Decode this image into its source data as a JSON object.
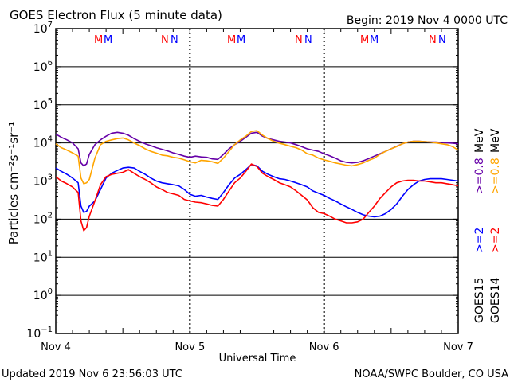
{
  "header": {
    "title": "GOES Electron Flux (5 minute data)",
    "begin": "Begin: 2019 Nov 4 0000 UTC"
  },
  "footer": {
    "updated": "Updated 2019 Nov  6 23:56:03 UTC",
    "source": "NOAA/SWPC Boulder, CO USA"
  },
  "axes": {
    "ylabel": "Particles cm⁻²s⁻¹sr⁻¹",
    "xlabel": "Universal Time"
  },
  "markers": {
    "M": "M",
    "N": "N"
  },
  "right_legend": {
    "goes15": "GOES15",
    "goes14": "GOES14",
    "ge2": ">=2",
    "ge08": ">=0.8",
    "mev": "MeV"
  },
  "colors": {
    "goes15_ge08": "#6600a8",
    "goes14_ge08": "#ffa500",
    "goes15_ge2": "#0000ff",
    "goes14_ge2": "#ff0000",
    "M_goes14": "#ff0000",
    "M_goes15": "#0000ff"
  },
  "chart_data": {
    "type": "line",
    "title": "GOES Electron Flux (5 minute data)",
    "xlabel": "Universal Time",
    "ylabel": "Particles cm⁻²s⁻¹sr⁻¹",
    "x_unit": "hours since 2019 Nov 4 0000 UTC",
    "xlim": [
      0,
      72
    ],
    "x_ticks": [
      {
        "x": 0,
        "label": "Nov 4"
      },
      {
        "x": 24,
        "label": "Nov 5"
      },
      {
        "x": 48,
        "label": "Nov 6"
      },
      {
        "x": 72,
        "label": "Nov 7"
      }
    ],
    "y_scale": "log",
    "ylim": [
      0.1,
      10000000
    ],
    "y_ticks": [
      {
        "v": 0.1,
        "base": "10",
        "exp": "−1"
      },
      {
        "v": 1,
        "base": "10",
        "exp": "0"
      },
      {
        "v": 10,
        "base": "10",
        "exp": "1"
      },
      {
        "v": 100,
        "base": "10",
        "exp": "2"
      },
      {
        "v": 1000,
        "base": "10",
        "exp": "3"
      },
      {
        "v": 10000,
        "base": "10",
        "exp": "4"
      },
      {
        "v": 100000,
        "base": "10",
        "exp": "5"
      },
      {
        "v": 1000000,
        "base": "10",
        "exp": "6"
      },
      {
        "v": 10000000,
        "base": "10",
        "exp": "7"
      }
    ],
    "threshold": 1000,
    "x": [
      0,
      1,
      2,
      3,
      4,
      4.5,
      5,
      5.5,
      6,
      7,
      8,
      9,
      10,
      11,
      12,
      13,
      14,
      15,
      16,
      17,
      18,
      19,
      20,
      21,
      22,
      23,
      24,
      25,
      26,
      27,
      28,
      29,
      30,
      31,
      32,
      33,
      34,
      35,
      36,
      37,
      38,
      39,
      40,
      41,
      42,
      43,
      44,
      45,
      46,
      47,
      48,
      49,
      50,
      51,
      52,
      53,
      54,
      55,
      56,
      57,
      58,
      59,
      60,
      61,
      62,
      63,
      64,
      65,
      66,
      67,
      68,
      69,
      70,
      71,
      72
    ],
    "series": [
      {
        "name": "GOES15 >=0.8 MeV",
        "color": "#6600a8",
        "values": [
          17000,
          14000,
          12000,
          10000,
          7000,
          3000,
          2500,
          2800,
          5000,
          9000,
          12000,
          15000,
          18000,
          19000,
          18000,
          16000,
          13000,
          11000,
          9500,
          8500,
          7500,
          6800,
          6200,
          5500,
          5000,
          4500,
          4200,
          4500,
          4300,
          4200,
          3800,
          3700,
          5000,
          7000,
          9000,
          11000,
          14000,
          18000,
          19000,
          15000,
          13000,
          12000,
          11000,
          10500,
          10000,
          9000,
          8000,
          7000,
          6500,
          6000,
          5200,
          4600,
          4000,
          3400,
          3100,
          3000,
          3100,
          3400,
          3900,
          4500,
          5200,
          6000,
          7000,
          8200,
          9500,
          10500,
          11000,
          11000,
          10800,
          10500,
          10500,
          10300,
          10000,
          9800,
          9500
        ]
      },
      {
        "name": "GOES14 >=0.8 MeV",
        "color": "#ffa500",
        "values": [
          9500,
          7500,
          6500,
          5500,
          4500,
          1200,
          850,
          900,
          1100,
          4000,
          9000,
          11000,
          12000,
          13000,
          13500,
          12000,
          10000,
          8500,
          7000,
          6000,
          5400,
          4800,
          4600,
          4200,
          4000,
          3600,
          3200,
          3000,
          3500,
          3400,
          3200,
          2900,
          4000,
          6000,
          9000,
          12000,
          15000,
          20000,
          21000,
          16000,
          13000,
          11000,
          9800,
          9000,
          8200,
          7500,
          6500,
          5200,
          4800,
          4000,
          3600,
          3300,
          3000,
          2800,
          2600,
          2500,
          2700,
          3000,
          3500,
          4000,
          5000,
          6000,
          7000,
          8000,
          9500,
          10500,
          11000,
          11000,
          10800,
          10500,
          10000,
          9500,
          9000,
          8000,
          6500
        ]
      },
      {
        "name": "GOES15 >=2 MeV",
        "color": "#0000ff",
        "values": [
          2200,
          1800,
          1500,
          1200,
          900,
          220,
          150,
          160,
          220,
          300,
          600,
          1200,
          1600,
          1900,
          2200,
          2300,
          2200,
          1800,
          1500,
          1200,
          1000,
          900,
          850,
          800,
          750,
          600,
          450,
          400,
          420,
          380,
          350,
          330,
          500,
          800,
          1200,
          1500,
          2000,
          2700,
          2500,
          1800,
          1500,
          1300,
          1150,
          1100,
          1000,
          900,
          800,
          700,
          550,
          480,
          420,
          350,
          300,
          250,
          210,
          180,
          150,
          130,
          120,
          115,
          120,
          140,
          180,
          250,
          400,
          600,
          800,
          1000,
          1100,
          1150,
          1150,
          1150,
          1100,
          1050,
          1000
        ]
      },
      {
        "name": "GOES14 >=2 MeV",
        "color": "#ff0000",
        "values": [
          1300,
          1000,
          850,
          700,
          500,
          90,
          50,
          60,
          120,
          300,
          800,
          1300,
          1500,
          1600,
          1700,
          2000,
          1600,
          1300,
          1100,
          900,
          700,
          600,
          500,
          460,
          420,
          330,
          300,
          280,
          270,
          250,
          230,
          220,
          330,
          550,
          900,
          1200,
          1800,
          2800,
          2400,
          1600,
          1300,
          1100,
          900,
          800,
          700,
          550,
          420,
          320,
          200,
          150,
          140,
          120,
          100,
          90,
          80,
          80,
          85,
          100,
          150,
          220,
          350,
          500,
          700,
          900,
          1000,
          1050,
          1050,
          1000,
          1000,
          950,
          900,
          900,
          850,
          800,
          750
        ]
      }
    ]
  }
}
